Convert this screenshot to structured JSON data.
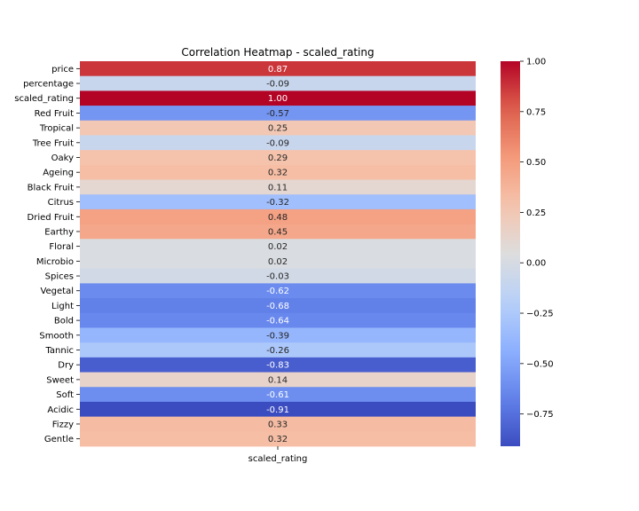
{
  "chart_data": {
    "type": "heatmap",
    "title": "Correlation Heatmap - scaled_rating",
    "xlabel": "",
    "ylabel": "",
    "column": "scaled_rating",
    "rows": [
      "price",
      "percentage",
      "scaled_rating",
      "Red Fruit",
      "Tropical",
      "Tree Fruit",
      "Oaky",
      "Ageing",
      "Black Fruit",
      "Citrus",
      "Dried Fruit",
      "Earthy",
      "Floral",
      "Microbio",
      "Spices",
      "Vegetal",
      "Light",
      "Bold",
      "Smooth",
      "Tannic",
      "Dry",
      "Sweet",
      "Soft",
      "Acidic",
      "Fizzy",
      "Gentle"
    ],
    "values": [
      0.87,
      -0.09,
      1.0,
      -0.57,
      0.25,
      -0.09,
      0.29,
      0.32,
      0.11,
      -0.32,
      0.48,
      0.45,
      0.02,
      0.02,
      -0.03,
      -0.62,
      -0.68,
      -0.64,
      -0.39,
      -0.26,
      -0.83,
      0.14,
      -0.61,
      -0.91,
      0.33,
      0.32
    ],
    "value_labels": [
      "0.87",
      "-0.09",
      "1.00",
      "-0.57",
      "0.25",
      "-0.09",
      "0.29",
      "0.32",
      "0.11",
      "-0.32",
      "0.48",
      "0.45",
      "0.02",
      "0.02",
      "-0.03",
      "-0.62",
      "-0.68",
      "-0.64",
      "-0.39",
      "-0.26",
      "-0.83",
      "0.14",
      "-0.61",
      "-0.91",
      "0.33",
      "0.32"
    ],
    "colormap": "coolwarm",
    "colorbar": {
      "vmin": -0.91,
      "vmax": 1.0,
      "ticks": [
        1.0,
        0.75,
        0.5,
        0.25,
        0.0,
        -0.25,
        -0.5,
        -0.75
      ],
      "tick_labels": [
        "1.00",
        "0.75",
        "0.50",
        "0.25",
        "0.00",
        "−0.25",
        "−0.50",
        "−0.75"
      ]
    },
    "grid": false,
    "legend": "colorbar-right"
  }
}
